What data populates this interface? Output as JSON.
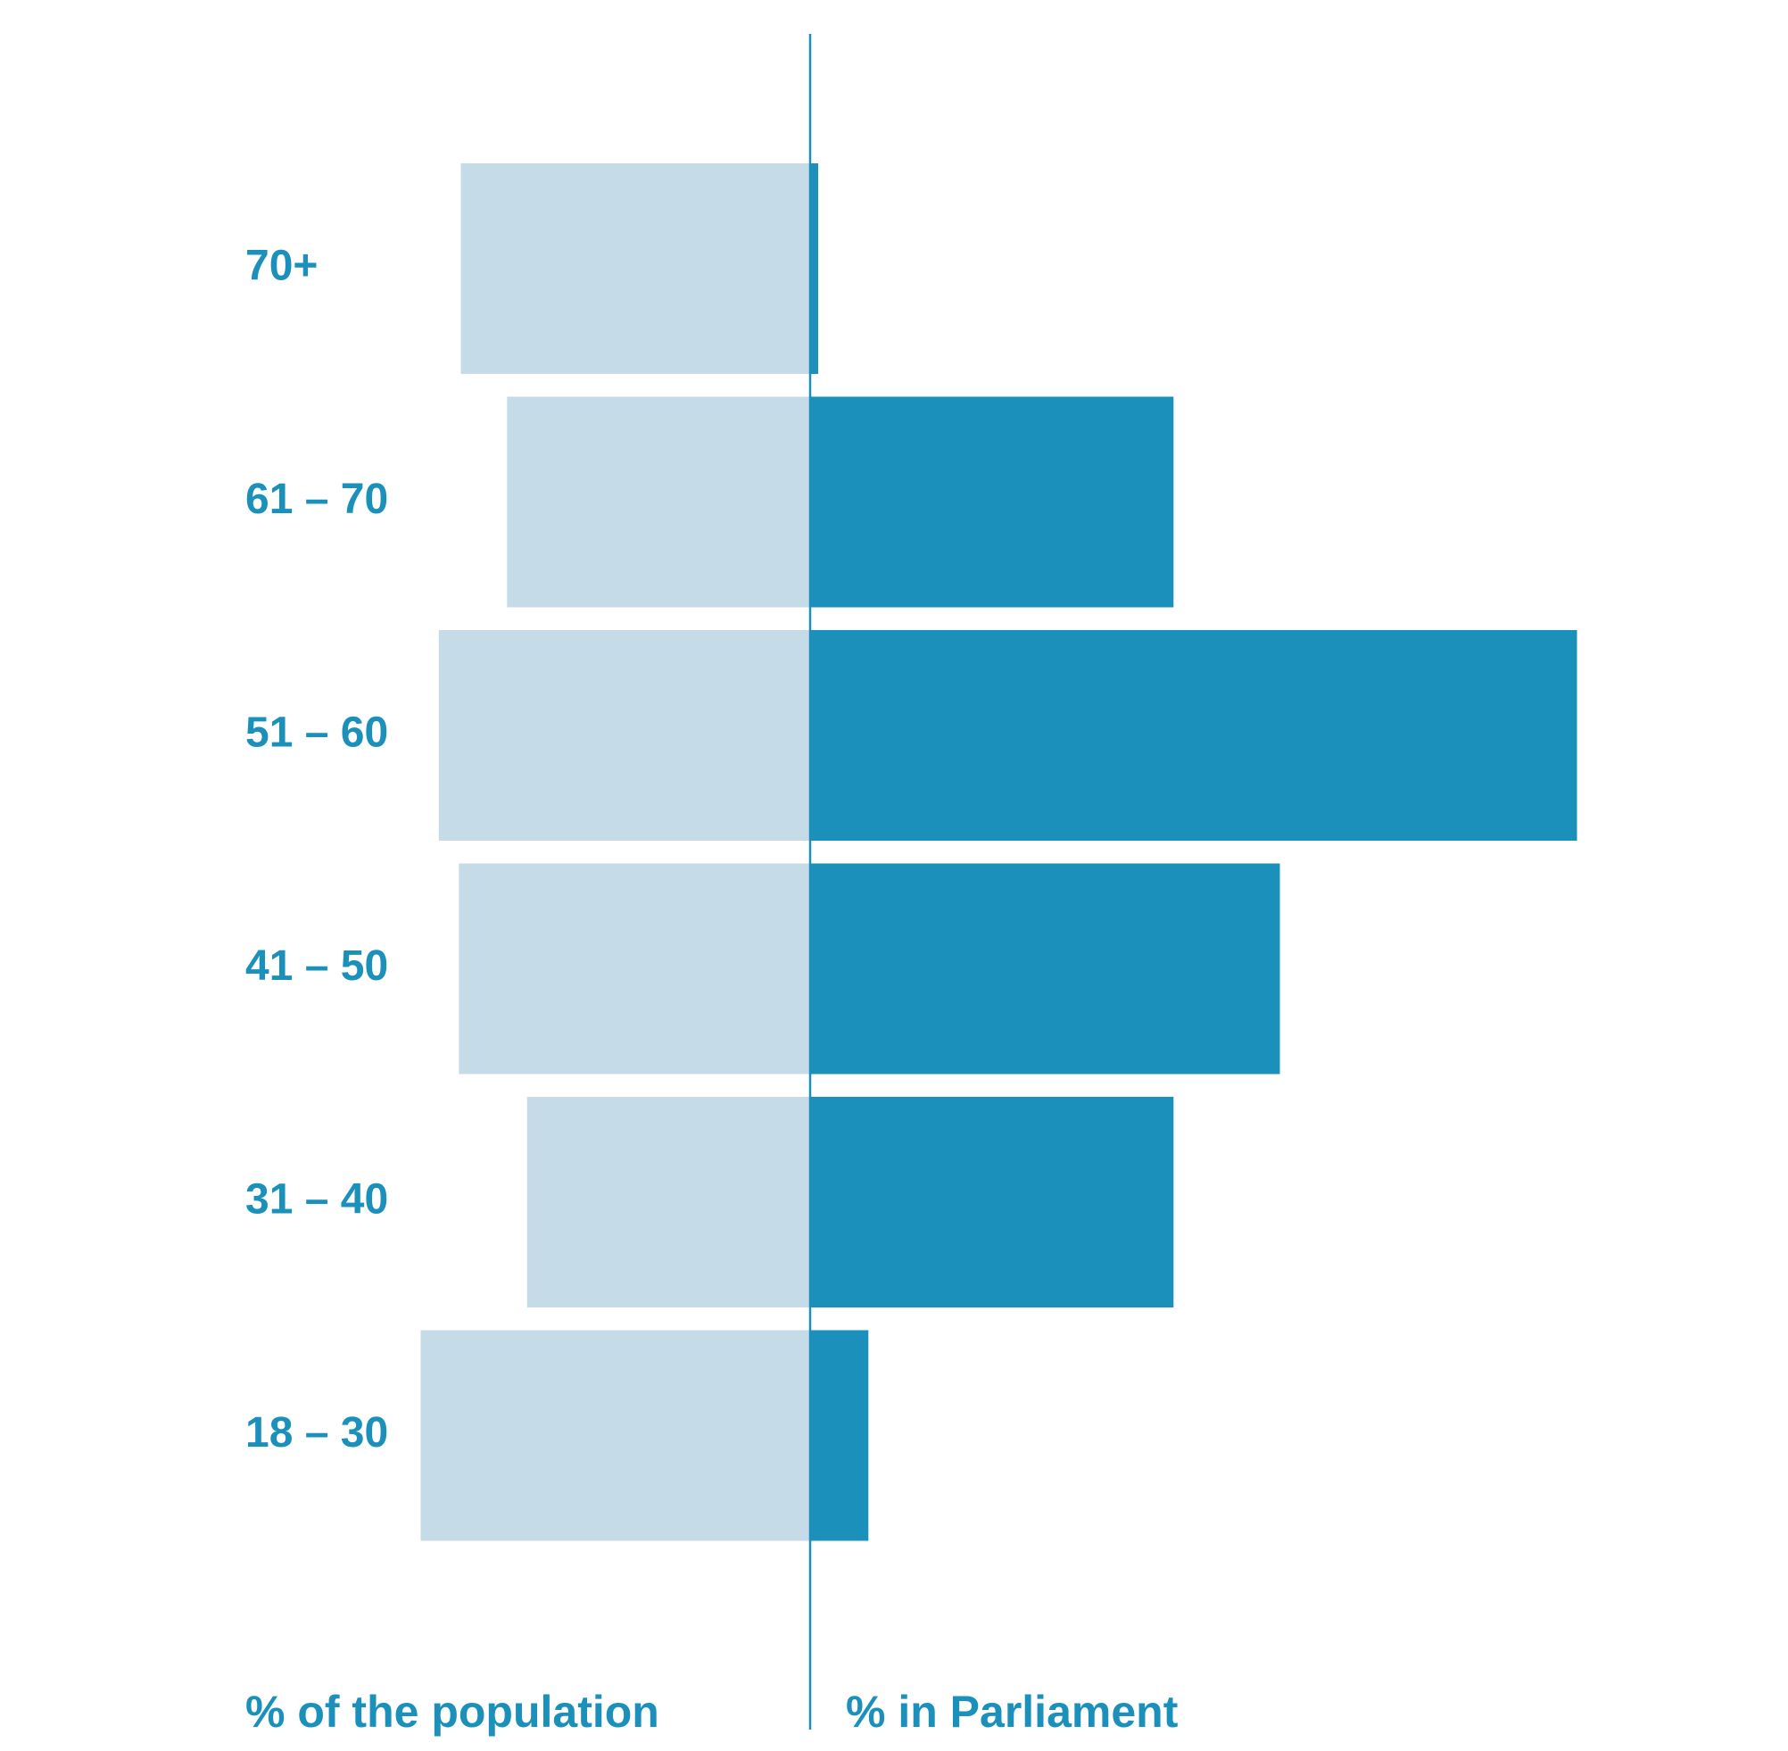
{
  "chart_data": {
    "type": "bar",
    "orientation": "horizontal-diverging",
    "categories": [
      "70+",
      "61 – 70",
      "51 – 60",
      "41 – 50",
      "31 – 40",
      "18 – 30"
    ],
    "series": [
      {
        "name": "% of the population",
        "side": "left",
        "color": "#c6dbe8",
        "values": [
          17.4,
          15.1,
          18.5,
          17.5,
          14.1,
          19.4
        ]
      },
      {
        "name": "% in Parliament",
        "side": "right",
        "color": "#1a90ba",
        "values": [
          0.4,
          18.1,
          38.2,
          23.4,
          18.1,
          2.9
        ]
      }
    ],
    "xlim": [
      0,
      40
    ],
    "grid": false,
    "legend": "bottom"
  },
  "colors": {
    "text": "#1a90ba",
    "axis": "#1a90ba"
  }
}
